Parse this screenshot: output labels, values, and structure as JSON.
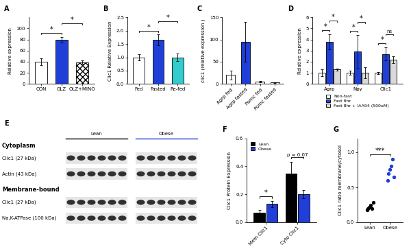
{
  "chart_data": [
    {
      "panel": "A",
      "type": "bar",
      "y_label": "Relative expression",
      "categories": [
        "CON",
        "OLZ",
        "OLZ+MINO"
      ],
      "values": [
        40,
        80,
        39
      ],
      "errors": [
        6,
        5,
        3
      ],
      "colors": [
        "#ffffff",
        "#1f3fd6",
        "#ffffff"
      ],
      "ylim": [
        0,
        120
      ],
      "yticks": [
        0,
        20,
        40,
        60,
        80,
        100
      ],
      "annotations": [
        {
          "text": "*",
          "from": "CON",
          "to": "OLZ"
        },
        {
          "text": "*",
          "from": "OLZ",
          "to": "OLZ+MINO"
        }
      ]
    },
    {
      "panel": "B",
      "type": "bar",
      "y_label": "Clic1 Relative Expression",
      "categories": [
        "Fed",
        "Fasted",
        "Re-fed"
      ],
      "values": [
        1.0,
        1.65,
        1.0
      ],
      "errors": [
        0.12,
        0.2,
        0.15
      ],
      "colors": [
        "#ffffff",
        "#1f3fd6",
        "#33cccc"
      ],
      "ylim": [
        0.0,
        2.5
      ],
      "yticks": [
        0.0,
        0.5,
        1.0,
        1.5,
        2.0,
        2.5
      ],
      "annotations": [
        {
          "text": "*",
          "from": "Fed",
          "to": "Fasted"
        },
        {
          "text": "*",
          "from": "Fasted",
          "to": "Re-fed"
        }
      ]
    },
    {
      "panel": "C",
      "type": "bar",
      "y_label": "clic1 (relative expression )",
      "categories": [
        "Agrp fed",
        "Agrp fasted",
        "Pomc fed",
        "Pomc fasted"
      ],
      "values": [
        20,
        95,
        5,
        3
      ],
      "errors": [
        10,
        45,
        2,
        1
      ],
      "colors": [
        "#ffffff",
        "#1f3fd6",
        "#ffffff",
        "#ffffff"
      ],
      "ylim": [
        0,
        150
      ],
      "yticks": [
        0,
        50,
        100,
        150
      ]
    },
    {
      "panel": "D",
      "type": "grouped_bar",
      "y_label": "Relative expression",
      "categories": [
        "Agrp",
        "Npy",
        "Clic1"
      ],
      "series": [
        {
          "name": "Non-fast",
          "color": "#ffffff",
          "values": [
            1.0,
            1.0,
            1.0
          ],
          "errors": [
            0.3,
            0.2,
            0.1
          ]
        },
        {
          "name": "Fast 8hr",
          "color": "#1f3fd6",
          "values": [
            3.8,
            2.9,
            2.7
          ],
          "errors": [
            0.7,
            1.5,
            0.6
          ]
        },
        {
          "name": "Fast 8hr + IAA94 (500uM)",
          "color": "#d9d9d9",
          "values": [
            1.3,
            1.0,
            2.2
          ],
          "errors": [
            0.1,
            0.5,
            0.3
          ]
        }
      ],
      "legend": "upper center",
      "ylim": [
        0,
        6
      ],
      "yticks": [
        0,
        1,
        2,
        3,
        4,
        5,
        6
      ],
      "annotations": [
        {
          "text": "*",
          "category": "Agrp",
          "from": "Non-fast",
          "to": "Fast 8hr"
        },
        {
          "text": "*",
          "category": "Agrp",
          "from": "Fast 8hr",
          "to": "Fast 8hr + IAA94 (500uM)"
        },
        {
          "text": "*",
          "category": "Npy",
          "from": "Non-fast",
          "to": "Fast 8hr"
        },
        {
          "text": "*",
          "category": "Npy",
          "from": "Fast 8hr",
          "to": "Fast 8hr + IAA94 (500uM)"
        },
        {
          "text": "*",
          "category": "Clic1",
          "from": "Non-fast",
          "to": "Fast 8hr"
        },
        {
          "text": "ns",
          "category": "Clic1",
          "from": "Fast 8hr",
          "to": "Fast 8hr + IAA94 (500uM)"
        }
      ]
    },
    {
      "panel": "E",
      "type": "blot",
      "groups": [
        "Lean",
        "Obese"
      ],
      "colors": [
        "#000000",
        "#1f3fd6"
      ],
      "sections": [
        {
          "title": "Cytoplasm",
          "rows": [
            "Clic1 (27 kDa)",
            "Actin (43 kDa)"
          ]
        },
        {
          "title": "Membrane-bound",
          "rows": [
            "Clic1 (27 kDa)",
            "Na,K-ATPase (100 kDa)"
          ]
        }
      ]
    },
    {
      "panel": "F",
      "type": "grouped_bar",
      "y_label": "Clic1 Protein Expression",
      "categories": [
        "Mem Clic1",
        "Cyto Clic1"
      ],
      "series": [
        {
          "name": "Lean",
          "color": "#000000",
          "values": [
            0.07,
            0.35
          ],
          "errors": [
            0.02,
            0.08
          ]
        },
        {
          "name": "Obese",
          "color": "#1f3fd6",
          "values": [
            0.13,
            0.2
          ],
          "errors": [
            0.02,
            0.03
          ]
        }
      ],
      "legend": "upper left",
      "ylim": [
        0.0,
        0.6
      ],
      "yticks": [
        0.0,
        0.2,
        0.4,
        0.6
      ],
      "annotations": [
        {
          "text": "*",
          "category": "Mem Clic1",
          "from": "Lean",
          "to": "Obese"
        },
        {
          "text": "p = 0.07",
          "category": "Cyto Clic1",
          "from": "Lean",
          "to": "Obese"
        }
      ]
    },
    {
      "panel": "G",
      "type": "scatter",
      "y_label": "Clic1 ratio membrane/cytosol",
      "categories": [
        "Lean",
        "Obese"
      ],
      "points": [
        [
          0.18,
          0.2,
          0.22,
          0.25,
          0.2,
          0.28
        ],
        [
          0.6,
          0.7,
          0.75,
          0.8,
          0.9,
          0.65
        ]
      ],
      "colors": [
        "#000000",
        "#1f3fd6"
      ],
      "ylim": [
        0.0,
        1.2
      ],
      "yticks": [
        0.0,
        0.5,
        1.0
      ],
      "annotations": [
        {
          "text": "***",
          "from": "Lean",
          "to": "Obese"
        }
      ]
    }
  ]
}
